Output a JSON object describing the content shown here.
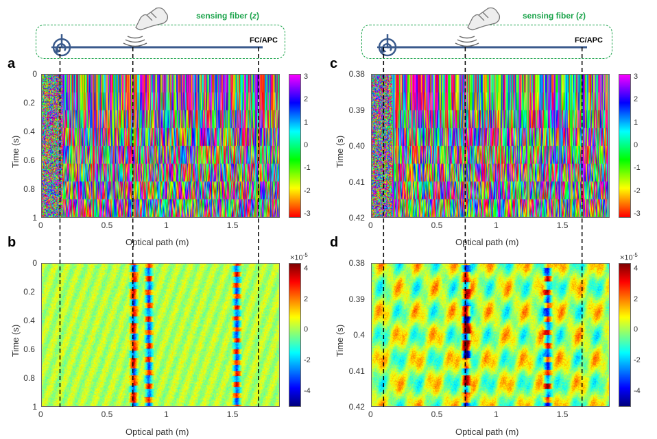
{
  "schematic": {
    "label_text": "sensing fiber (",
    "label_var": "z",
    "label_close": ")",
    "connector": "FC/APC"
  },
  "colors": {
    "fiber": "#3a5a8c",
    "dashed_box": "#1aa34a",
    "guide_lines": "#000000"
  },
  "icons": [
    "circulator-icon",
    "hand-pointer-icon",
    "vibration-waves-icon"
  ],
  "chart_data": [
    {
      "panel": "a",
      "type": "heatmap",
      "xlabel": "Optical path (m)",
      "ylabel": "Time (s)",
      "xlim": [
        0,
        1.9
      ],
      "ylim": [
        0,
        1
      ],
      "xticks": [
        "0",
        "0.5",
        "1",
        "1.5"
      ],
      "yticks": [
        "0",
        "0.2",
        "0.4",
        "0.6",
        "0.8",
        "1"
      ],
      "colormap": "hsv",
      "clim": [
        -3.14,
        3.14
      ],
      "colorbar_ticks": [
        "3",
        "2",
        "1",
        "0",
        "-1",
        "-2",
        "-3"
      ],
      "colorbar_exponent": ""
    },
    {
      "panel": "b",
      "type": "heatmap",
      "xlabel": "Optical path (m)",
      "ylabel": "Time (s)",
      "xlim": [
        0,
        1.9
      ],
      "ylim": [
        0,
        1
      ],
      "xticks": [
        "0",
        "0.5",
        "1",
        "1.5"
      ],
      "yticks": [
        "0",
        "0.2",
        "0.4",
        "0.6",
        "0.8",
        "1"
      ],
      "colormap": "jet",
      "clim": [
        -5,
        4.4
      ],
      "colorbar_ticks": [
        "4",
        "2",
        "0",
        "-2",
        "-4"
      ],
      "colorbar_exponent": "×10",
      "colorbar_exponent_power": "-5",
      "hotspots_m": [
        0.73,
        0.85,
        1.55
      ]
    },
    {
      "panel": "c",
      "type": "heatmap",
      "xlabel": "Optical path (m)",
      "ylabel": "Time (s)",
      "xlim": [
        0,
        1.9
      ],
      "ylim": [
        0.38,
        0.42
      ],
      "xticks": [
        "0",
        "0.5",
        "1",
        "1.5"
      ],
      "yticks": [
        "0.38",
        "0.39",
        "0.40",
        "0.41",
        "0.42"
      ],
      "colormap": "hsv",
      "clim": [
        -3.14,
        3.14
      ],
      "colorbar_ticks": [
        "3",
        "2",
        "1",
        "0",
        "-1",
        "-2",
        "-3"
      ],
      "colorbar_exponent": ""
    },
    {
      "panel": "d",
      "type": "heatmap",
      "xlabel": "Optical path (m)",
      "ylabel": "Time (s)",
      "xlim": [
        0,
        1.9
      ],
      "ylim": [
        0.38,
        0.42
      ],
      "xticks": [
        "0",
        "0.5",
        "1",
        "1.5"
      ],
      "yticks": [
        "0.38",
        "0.39",
        "0.4",
        "0.41",
        "0.42"
      ],
      "colormap": "jet",
      "clim": [
        -5,
        4.4
      ],
      "colorbar_ticks": [
        "4",
        "2",
        "0",
        "-2",
        "-4"
      ],
      "colorbar_exponent": "×10",
      "colorbar_exponent_power": "-5",
      "hotspots_m": [
        0.75,
        1.4
      ]
    }
  ],
  "guide_lines_m": {
    "left": [
      0.15,
      0.73,
      1.73
    ],
    "right": [
      0.1,
      0.75,
      1.68
    ]
  }
}
